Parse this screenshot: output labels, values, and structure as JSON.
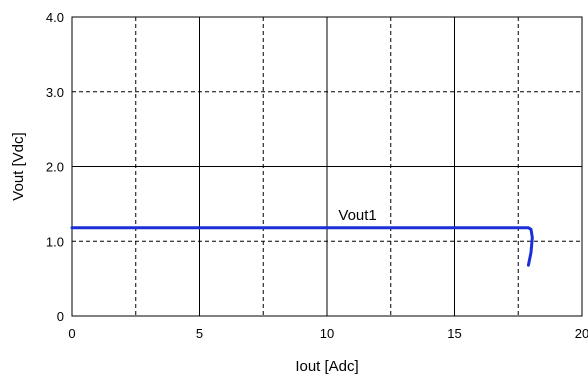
{
  "chart_data": {
    "type": "line",
    "xlabel": "Iout [Adc]",
    "ylabel": "Vout [Vdc]",
    "xlim": [
      0,
      20
    ],
    "ylim": [
      0,
      4
    ],
    "x_ticks": [
      0,
      5,
      10,
      15,
      20
    ],
    "x_tick_labels": [
      "0",
      "5",
      "10",
      "15",
      "20"
    ],
    "y_ticks": [
      0,
      1,
      2,
      3,
      4
    ],
    "y_tick_labels": [
      "0",
      "1.0",
      "2.0",
      "3.0",
      "4.0"
    ],
    "x_minor_grid": [
      2.5,
      7.5,
      12.5,
      17.5
    ],
    "y_minor_grid": [
      1,
      3
    ],
    "y_major_grid": [
      2
    ],
    "x_major_grid": [
      5,
      10,
      15
    ],
    "grid": true,
    "series": [
      {
        "name": "Vout1",
        "color": "#1a2fd6",
        "x": [
          0,
          17.9,
          18.0,
          18.05,
          18.0,
          17.9
        ],
        "y": [
          1.18,
          1.18,
          1.16,
          1.05,
          0.85,
          0.68
        ]
      }
    ]
  }
}
